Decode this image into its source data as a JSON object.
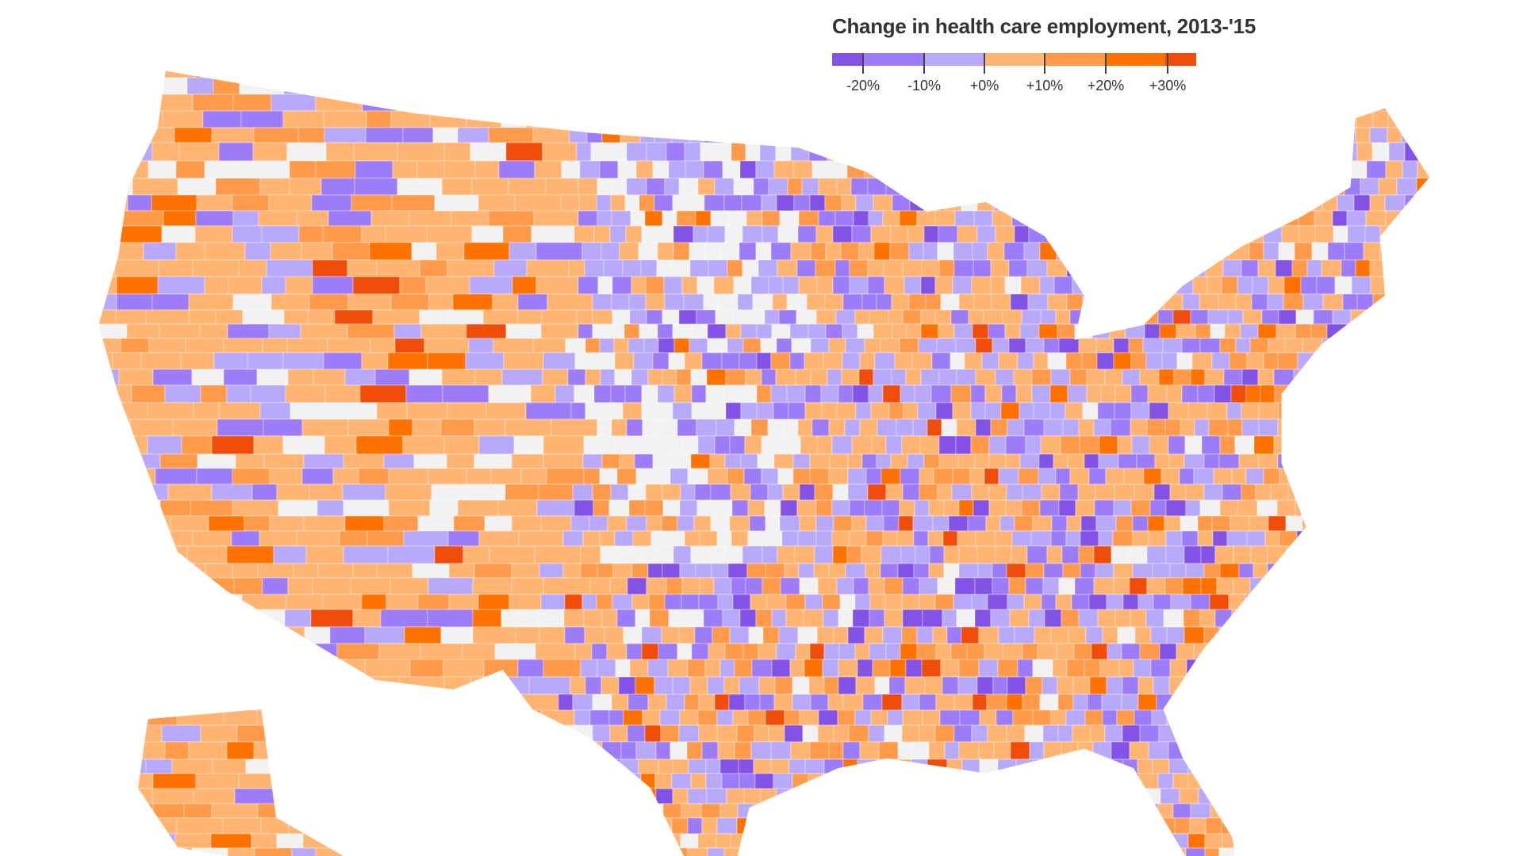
{
  "legend": {
    "title": "Change in health care employment, 2013-'15",
    "ticks": [
      "-20%",
      "-10%",
      "+0%",
      "+10%",
      "+20%",
      "+30%"
    ],
    "bins": [
      {
        "range": "< -20%",
        "color": "#8352e6"
      },
      {
        "range": "-20% to -10%",
        "color": "#9d7cf9"
      },
      {
        "range": "-10% to 0%",
        "color": "#b9a9fb"
      },
      {
        "range": "0% to +10%",
        "color": "#ffb472"
      },
      {
        "range": "+10% to +20%",
        "color": "#ff9a4a"
      },
      {
        "range": "+20% to +30%",
        "color": "#ff7200"
      },
      {
        "range": "> +30%",
        "color": "#f04d0a"
      }
    ],
    "no_data_color": "#f2f2f2"
  }
}
